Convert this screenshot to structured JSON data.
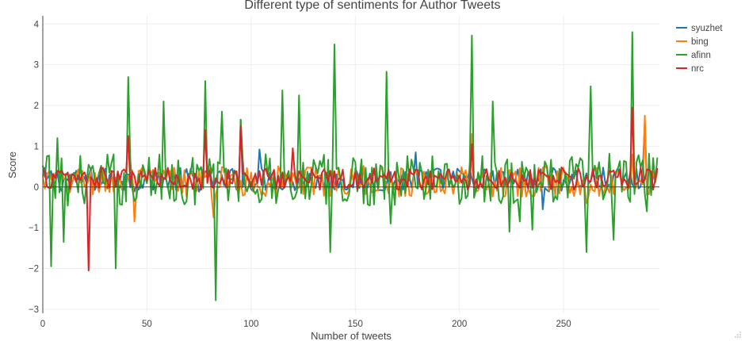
{
  "chart_data": {
    "type": "line",
    "title": "Different type of sentiments for Author Tweets",
    "xlabel": "Number of tweets",
    "ylabel": "Score",
    "xlim": [
      0,
      296
    ],
    "ylim": [
      -3.1,
      4.2
    ],
    "xticks": [
      0,
      50,
      100,
      150,
      200,
      250
    ],
    "yticks": [
      -3,
      -2,
      -1,
      0,
      1,
      2,
      3,
      4
    ],
    "grid": true,
    "legend_position": "top-right",
    "n_points": 296,
    "series": [
      {
        "name": "syuzhet",
        "color": "#1f77b4",
        "amp": 0.3,
        "bias": 0.15,
        "spikes": [
          [
            95,
            1.65
          ],
          [
            104,
            0.92
          ],
          [
            179,
            0.85
          ],
          [
            240,
            -0.55
          ],
          [
            289,
            1.6
          ]
        ]
      },
      {
        "name": "bing",
        "color": "#ff7f0e",
        "amp": 0.38,
        "bias": 0.1,
        "spikes": [
          [
            22,
            0.15
          ],
          [
            44,
            -0.85
          ],
          [
            82,
            -0.75
          ],
          [
            206,
            1.3
          ],
          [
            261,
            -0.4
          ],
          [
            283,
            0.8
          ],
          [
            289,
            1.75
          ]
        ]
      },
      {
        "name": "afinn",
        "color": "#2ca02c",
        "amp": 0.65,
        "bias": 0.12,
        "spikes": [
          [
            4,
            -1.95
          ],
          [
            7,
            1.2
          ],
          [
            10,
            -1.35
          ],
          [
            35,
            -2.0
          ],
          [
            41,
            2.7
          ],
          [
            58,
            2.1
          ],
          [
            78,
            2.6
          ],
          [
            83,
            -2.78
          ],
          [
            86,
            1.85
          ],
          [
            95,
            1.65
          ],
          [
            115,
            2.37
          ],
          [
            123,
            2.25
          ],
          [
            138,
            -1.6
          ],
          [
            140,
            3.5
          ],
          [
            165,
            2.83
          ],
          [
            167,
            -0.9
          ],
          [
            206,
            3.72
          ],
          [
            216,
            2.1
          ],
          [
            224,
            -1.1
          ],
          [
            229,
            -0.85
          ],
          [
            235,
            -1.05
          ],
          [
            261,
            -1.6
          ],
          [
            263,
            2.47
          ],
          [
            274,
            -1.3
          ],
          [
            283,
            3.8
          ],
          [
            290,
            -0.6
          ]
        ]
      },
      {
        "name": "nrc",
        "color": "#d62728",
        "amp": 0.28,
        "bias": 0.18,
        "spikes": [
          [
            22,
            -2.05
          ],
          [
            41,
            1.25
          ],
          [
            78,
            1.4
          ],
          [
            95,
            1.5
          ],
          [
            120,
            0.95
          ],
          [
            206,
            1.05
          ],
          [
            283,
            1.95
          ]
        ]
      }
    ]
  }
}
